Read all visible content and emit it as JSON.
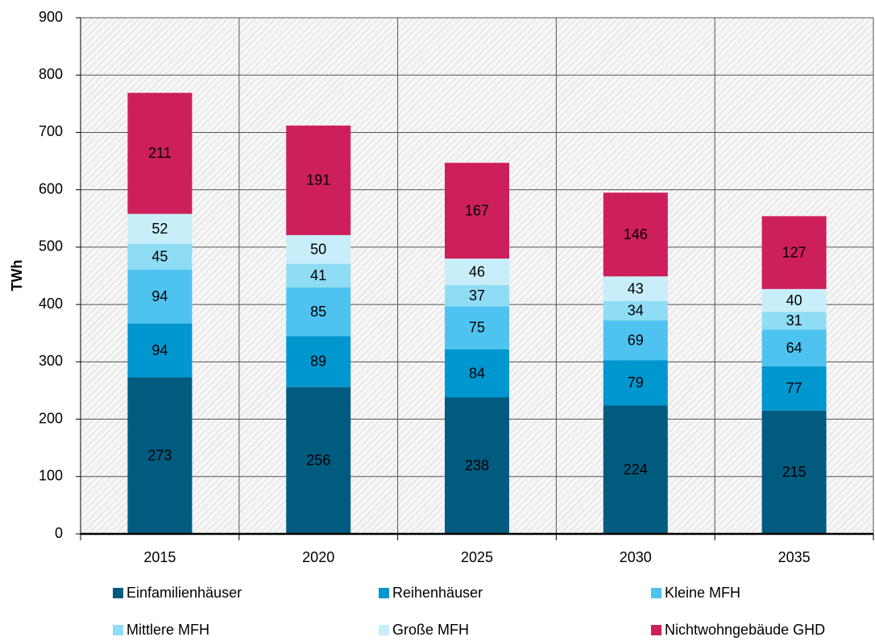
{
  "chart_data": {
    "type": "stacked_bar",
    "y_label": "TWh",
    "categories": [
      "2015",
      "2020",
      "2025",
      "2030",
      "2035"
    ],
    "series": [
      {
        "name": "Einfamilienhäuser",
        "color": "#005b7f",
        "values": [
          273,
          256,
          238,
          224,
          215
        ]
      },
      {
        "name": "Reihenhäuser",
        "color": "#0096cf",
        "values": [
          94,
          89,
          84,
          79,
          77
        ]
      },
      {
        "name": "Kleine MFH",
        "color": "#4ec3ef",
        "values": [
          94,
          85,
          75,
          69,
          64
        ]
      },
      {
        "name": "Mittlere MFH",
        "color": "#8fdcf5",
        "values": [
          45,
          41,
          37,
          34,
          31
        ]
      },
      {
        "name": "Große MFH",
        "color": "#c8eefa",
        "values": [
          52,
          50,
          46,
          43,
          40
        ]
      },
      {
        "name": "Nichtwohngebäude GHD",
        "color": "#cd1f5b",
        "values": [
          211,
          191,
          167,
          146,
          127
        ]
      }
    ],
    "ylim": [
      0,
      900
    ],
    "yticks": [
      0,
      100,
      200,
      300,
      400,
      500,
      600,
      700,
      800,
      900
    ],
    "grid": true,
    "legend": "bottom"
  }
}
